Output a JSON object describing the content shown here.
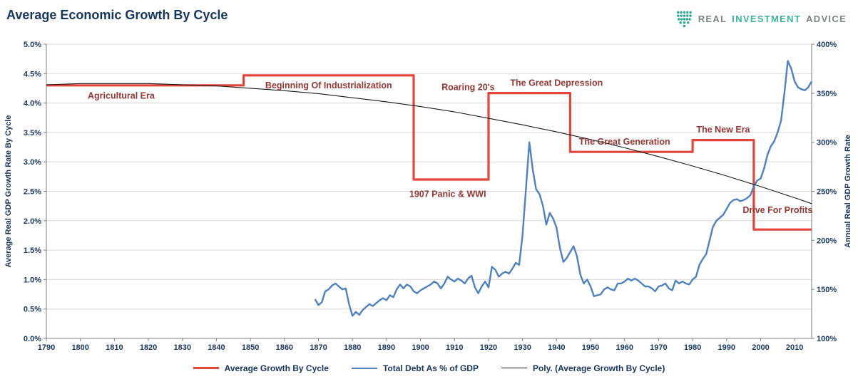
{
  "header": {
    "title": "Average Economic Growth By Cycle",
    "title_color": "#17365d",
    "logo": {
      "icon": "shield-icon",
      "icon_color": "#2fa893",
      "words": [
        {
          "text": "REAL",
          "color": "#7e8285"
        },
        {
          "text": "INVESTMENT",
          "color": "#3bb39a"
        },
        {
          "text": "ADVICE",
          "color": "#7e8285"
        }
      ]
    }
  },
  "chart_data": {
    "type": "line",
    "title": "Average Economic Growth By Cycle",
    "grid": {
      "horizontal": true,
      "color": "#d9d9d9"
    },
    "axis_color": "#7f7f7f",
    "text_color": "#17365d",
    "annotation_color": "#943634",
    "legend_position": "bottom",
    "x_axis": {
      "min": 1790,
      "max": 2015,
      "ticks": [
        1790,
        1800,
        1810,
        1820,
        1830,
        1840,
        1850,
        1860,
        1870,
        1880,
        1890,
        1900,
        1910,
        1920,
        1930,
        1940,
        1950,
        1960,
        1970,
        1980,
        1990,
        2000,
        2010
      ]
    },
    "left_axis": {
      "label": "Average Real GDP Growth Rate By Cycle",
      "min": 0,
      "max": 5,
      "step": 0.5,
      "unit": "%"
    },
    "right_axis": {
      "label": "Annual Real GDP Growth Rate",
      "min": 100,
      "max": 400,
      "step": 50,
      "unit": "%"
    },
    "series": [
      {
        "name": "Average Growth By Cycle",
        "slug": "average-growth-by-cycle",
        "axis": "left",
        "color": "#e2453c",
        "width": 3.2,
        "style": "step",
        "points": [
          [
            1790,
            4.3
          ],
          [
            1848,
            4.3
          ],
          [
            1848,
            4.47
          ],
          [
            1898,
            4.47
          ],
          [
            1898,
            2.7
          ],
          [
            1920,
            2.7
          ],
          [
            1920,
            4.17
          ],
          [
            1944,
            4.17
          ],
          [
            1944,
            3.17
          ],
          [
            1980,
            3.17
          ],
          [
            1980,
            3.37
          ],
          [
            1998,
            3.37
          ],
          [
            1998,
            1.85
          ],
          [
            2015,
            1.85
          ]
        ]
      },
      {
        "name": "Total Debt As % of GDP",
        "slug": "total-debt-as-pct-of-gdp",
        "axis": "right",
        "color": "#4e81bd",
        "width": 2.4,
        "style": "line",
        "points": [
          [
            1869,
            140
          ],
          [
            1870,
            134
          ],
          [
            1871,
            137
          ],
          [
            1872,
            148
          ],
          [
            1873,
            150
          ],
          [
            1874,
            154
          ],
          [
            1875,
            156
          ],
          [
            1876,
            153
          ],
          [
            1877,
            150
          ],
          [
            1878,
            151
          ],
          [
            1879,
            135
          ],
          [
            1880,
            123
          ],
          [
            1881,
            127
          ],
          [
            1882,
            124
          ],
          [
            1883,
            129
          ],
          [
            1884,
            132
          ],
          [
            1885,
            135
          ],
          [
            1886,
            133
          ],
          [
            1887,
            136
          ],
          [
            1888,
            139
          ],
          [
            1889,
            141
          ],
          [
            1890,
            139
          ],
          [
            1891,
            144
          ],
          [
            1892,
            142
          ],
          [
            1893,
            150
          ],
          [
            1894,
            155
          ],
          [
            1895,
            151
          ],
          [
            1896,
            155
          ],
          [
            1897,
            153
          ],
          [
            1898,
            148
          ],
          [
            1899,
            146
          ],
          [
            1900,
            149
          ],
          [
            1901,
            151
          ],
          [
            1902,
            153
          ],
          [
            1903,
            155
          ],
          [
            1904,
            158
          ],
          [
            1905,
            156
          ],
          [
            1906,
            151
          ],
          [
            1907,
            156
          ],
          [
            1908,
            163
          ],
          [
            1909,
            160
          ],
          [
            1910,
            158
          ],
          [
            1911,
            161
          ],
          [
            1912,
            159
          ],
          [
            1913,
            156
          ],
          [
            1914,
            161
          ],
          [
            1915,
            164
          ],
          [
            1916,
            152
          ],
          [
            1917,
            146
          ],
          [
            1918,
            153
          ],
          [
            1919,
            158
          ],
          [
            1920,
            152
          ],
          [
            1921,
            173
          ],
          [
            1922,
            170
          ],
          [
            1923,
            163
          ],
          [
            1924,
            166
          ],
          [
            1925,
            168
          ],
          [
            1926,
            166
          ],
          [
            1927,
            171
          ],
          [
            1928,
            177
          ],
          [
            1929,
            175
          ],
          [
            1930,
            205
          ],
          [
            1931,
            252
          ],
          [
            1932,
            300
          ],
          [
            1933,
            272
          ],
          [
            1934,
            252
          ],
          [
            1935,
            247
          ],
          [
            1936,
            235
          ],
          [
            1937,
            216
          ],
          [
            1938,
            228
          ],
          [
            1939,
            222
          ],
          [
            1940,
            213
          ],
          [
            1941,
            192
          ],
          [
            1942,
            178
          ],
          [
            1943,
            182
          ],
          [
            1944,
            188
          ],
          [
            1945,
            194
          ],
          [
            1946,
            184
          ],
          [
            1947,
            165
          ],
          [
            1948,
            156
          ],
          [
            1949,
            160
          ],
          [
            1950,
            153
          ],
          [
            1951,
            143
          ],
          [
            1952,
            144
          ],
          [
            1953,
            145
          ],
          [
            1954,
            150
          ],
          [
            1955,
            152
          ],
          [
            1956,
            150
          ],
          [
            1957,
            149
          ],
          [
            1958,
            156
          ],
          [
            1959,
            156
          ],
          [
            1960,
            158
          ],
          [
            1961,
            161
          ],
          [
            1962,
            159
          ],
          [
            1963,
            161
          ],
          [
            1964,
            159
          ],
          [
            1965,
            156
          ],
          [
            1966,
            153
          ],
          [
            1967,
            153
          ],
          [
            1968,
            151
          ],
          [
            1969,
            148
          ],
          [
            1970,
            153
          ],
          [
            1971,
            154
          ],
          [
            1972,
            156
          ],
          [
            1973,
            151
          ],
          [
            1974,
            149
          ],
          [
            1975,
            159
          ],
          [
            1976,
            156
          ],
          [
            1977,
            158
          ],
          [
            1978,
            156
          ],
          [
            1979,
            155
          ],
          [
            1980,
            160
          ],
          [
            1981,
            163
          ],
          [
            1982,
            175
          ],
          [
            1983,
            181
          ],
          [
            1984,
            186
          ],
          [
            1985,
            200
          ],
          [
            1986,
            214
          ],
          [
            1987,
            220
          ],
          [
            1988,
            223
          ],
          [
            1989,
            226
          ],
          [
            1990,
            232
          ],
          [
            1991,
            238
          ],
          [
            1992,
            241
          ],
          [
            1993,
            242
          ],
          [
            1994,
            240
          ],
          [
            1995,
            241
          ],
          [
            1996,
            243
          ],
          [
            1997,
            246
          ],
          [
            1998,
            255
          ],
          [
            1999,
            261
          ],
          [
            2000,
            263
          ],
          [
            2001,
            273
          ],
          [
            2002,
            287
          ],
          [
            2003,
            296
          ],
          [
            2004,
            301
          ],
          [
            2005,
            310
          ],
          [
            2006,
            322
          ],
          [
            2007,
            350
          ],
          [
            2008,
            383
          ],
          [
            2009,
            375
          ],
          [
            2010,
            362
          ],
          [
            2011,
            356
          ],
          [
            2012,
            354
          ],
          [
            2013,
            353
          ],
          [
            2014,
            356
          ],
          [
            2015,
            362
          ]
        ]
      },
      {
        "name": "Poly. (Average Growth By Cycle)",
        "slug": "poly-average-growth-by-cycle",
        "axis": "left",
        "color": "#1a1a1a",
        "width": 1.1,
        "style": "line",
        "points": [
          [
            1790,
            4.31
          ],
          [
            1800,
            4.33
          ],
          [
            1810,
            4.33
          ],
          [
            1820,
            4.33
          ],
          [
            1830,
            4.31
          ],
          [
            1840,
            4.29
          ],
          [
            1850,
            4.25
          ],
          [
            1860,
            4.21
          ],
          [
            1870,
            4.16
          ],
          [
            1880,
            4.09
          ],
          [
            1890,
            4.02
          ],
          [
            1900,
            3.94
          ],
          [
            1910,
            3.85
          ],
          [
            1920,
            3.74
          ],
          [
            1930,
            3.63
          ],
          [
            1940,
            3.51
          ],
          [
            1950,
            3.38
          ],
          [
            1960,
            3.24
          ],
          [
            1970,
            3.09
          ],
          [
            1980,
            2.93
          ],
          [
            1990,
            2.76
          ],
          [
            2000,
            2.58
          ],
          [
            2010,
            2.39
          ],
          [
            2015,
            2.29
          ]
        ]
      }
    ],
    "annotations": [
      {
        "text": "Agricultural Era",
        "x": 1812,
        "y": 4.12
      },
      {
        "text": "Beginning Of Industrialization",
        "x": 1873,
        "y": 4.3
      },
      {
        "text": "1907 Panic & WWI",
        "x": 1908,
        "y": 2.45
      },
      {
        "text": "Roaring 20's",
        "x": 1914,
        "y": 4.27
      },
      {
        "text": "The Great Depression",
        "x": 1940,
        "y": 4.34
      },
      {
        "text": "The Great Generation",
        "x": 1960,
        "y": 3.34
      },
      {
        "text": "The New Era",
        "x": 1989,
        "y": 3.55
      },
      {
        "text": "Drive For Profits",
        "x": 2005,
        "y": 2.18
      }
    ],
    "legend": [
      {
        "label": "Average Growth By Cycle",
        "color": "#e2453c",
        "thickness": 3
      },
      {
        "label": "Total Debt As % of GDP",
        "color": "#4e81bd",
        "thickness": 2
      },
      {
        "label": "Poly. (Average Growth By Cycle)",
        "color": "#1a1a1a",
        "thickness": 1
      }
    ]
  }
}
